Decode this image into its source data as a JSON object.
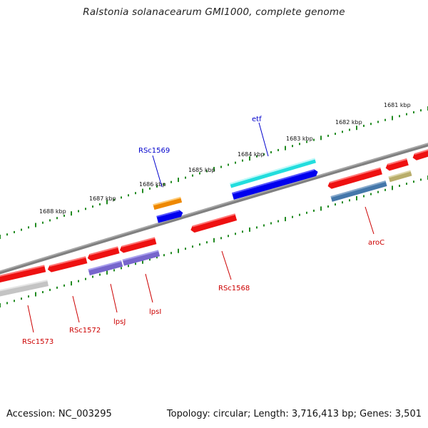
{
  "title": "Ralstonia solanacearum GMI1000, complete genome",
  "footer": {
    "accession": "Accession: NC_003295",
    "topology": "Topology: circular; Length: 3,716,413 bp; Genes: 3,501"
  },
  "scale_labels": [
    "1681 kbp",
    "1682 kbp",
    "1683 kbp",
    "1684 kbp",
    "1685 kbp",
    "1686 kbp",
    "1687 kbp",
    "1688 kbp"
  ],
  "colors": {
    "backbone": "#808080",
    "tick": "#228B22",
    "gene_red": "#ee1111",
    "label_red": "#cc0000",
    "label_blue": "#0000cc",
    "cyan": "#22dddd",
    "blue": "#0000ee",
    "orange": "#ee8800",
    "purple": "#7766cc",
    "gray": "#c4c4c4",
    "steel": "#4477aa",
    "khaki": "#b8ad6a"
  },
  "gene_labels": [
    {
      "text": "etf",
      "color": "label_blue"
    },
    {
      "text": "RSc1569",
      "color": "label_blue"
    },
    {
      "text": "aroC",
      "color": "label_red"
    },
    {
      "text": "RSc1568",
      "color": "label_red"
    },
    {
      "text": "lpsI",
      "color": "label_red"
    },
    {
      "text": "lpsJ",
      "color": "label_red"
    },
    {
      "text": "RSc1572",
      "color": "label_red"
    },
    {
      "text": "RSc1573",
      "color": "label_red"
    }
  ]
}
